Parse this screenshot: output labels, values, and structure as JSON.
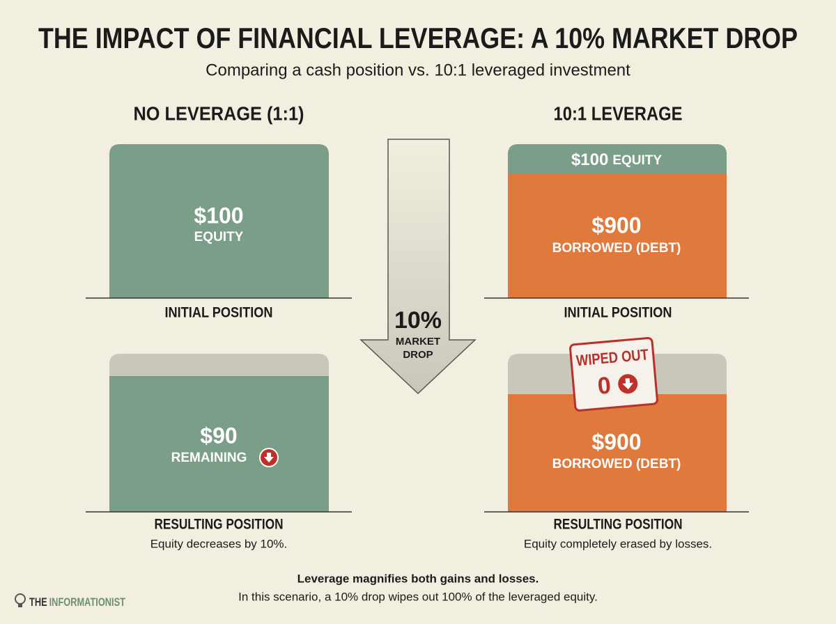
{
  "header": {
    "title": "THE IMPACT OF FINANCIAL LEVERAGE: A 10% MARKET DROP",
    "subtitle": "Comparing a cash position vs. 10:1 leveraged investment"
  },
  "left": {
    "heading": "NO LEVERAGE (1:1)",
    "initial": {
      "amount": "$100",
      "label": "EQUITY",
      "caption": "INITIAL POSITION"
    },
    "result": {
      "amount": "$90",
      "label": "REMAINING",
      "caption": "RESULTING POSITION",
      "note": "Equity decreases by 10%."
    }
  },
  "center": {
    "percent": "10%",
    "line1": "MARKET",
    "line2": "DROP"
  },
  "right": {
    "heading": "10:1 LEVERAGE",
    "initial": {
      "equity_amount": "$100",
      "equity_label": "EQUITY",
      "amount": "$900",
      "label": "BORROWED (DEBT)",
      "caption": "INITIAL POSITION"
    },
    "result": {
      "stamp": "WIPED OUT",
      "stamp_value": "0",
      "amount": "$900",
      "label": "BORROWED (DEBT)",
      "caption": "RESULTING POSITION",
      "note": "Equity completely erased by losses."
    }
  },
  "footer": {
    "headline": "Leverage magnifies both gains and losses.",
    "text": "In this scenario, a 10% drop wipes out 100% of the leveraged equity."
  },
  "brand": {
    "prefix": "THE",
    "name": "INFORMATIONIST"
  }
}
